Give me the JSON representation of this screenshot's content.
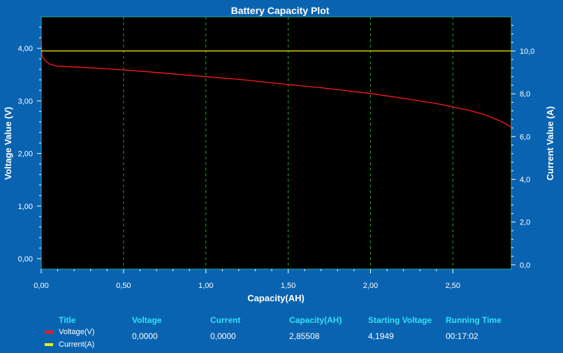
{
  "chart_data": {
    "type": "line",
    "title": "Battery Capacity Plot",
    "xlabel": "Capacity(AH)",
    "ylabel_left": "Voltage Value (V)",
    "ylabel_right": "Current Value (A)",
    "xlim": [
      0,
      2.855
    ],
    "ylim_left": [
      -0.2,
      4.6
    ],
    "ylim_right": [
      -0.2,
      11.6
    ],
    "x_ticks": [
      "0,00",
      "0,50",
      "1,00",
      "1,50",
      "2,00",
      "2,50"
    ],
    "x_tick_values": [
      0,
      0.5,
      1.0,
      1.5,
      2.0,
      2.5
    ],
    "y_left_ticks": [
      "0,00",
      "1,00",
      "2,00",
      "3,00",
      "4,00"
    ],
    "y_left_tick_values": [
      0,
      1,
      2,
      3,
      4
    ],
    "y_right_ticks": [
      "0,0",
      "2,0",
      "4,0",
      "6,0",
      "8,0",
      "10,0"
    ],
    "y_right_tick_values": [
      0,
      2,
      4,
      6,
      8,
      10
    ],
    "grid": "vertical dashed at x ticks",
    "series": [
      {
        "name": "Voltage(V)",
        "axis": "left",
        "color": "#ff1a1a",
        "x": [
          0.0,
          0.005,
          0.02,
          0.05,
          0.1,
          0.2,
          0.3,
          0.5,
          0.7,
          1.0,
          1.2,
          1.5,
          1.7,
          2.0,
          2.2,
          2.4,
          2.6,
          2.7,
          2.8,
          2.855
        ],
        "y": [
          4.19,
          3.85,
          3.78,
          3.7,
          3.66,
          3.645,
          3.63,
          3.59,
          3.54,
          3.46,
          3.41,
          3.31,
          3.25,
          3.14,
          3.05,
          2.95,
          2.82,
          2.73,
          2.6,
          2.5
        ]
      },
      {
        "name": "Current(A)",
        "axis": "right",
        "color": "#f2f200",
        "x": [
          0.0,
          2.855
        ],
        "y": [
          10.0,
          10.0
        ]
      }
    ]
  },
  "info": {
    "headers": {
      "title": "Title",
      "voltage": "Voltage",
      "current": "Current",
      "capacity": "Capacity(AH)",
      "starting_voltage": "Starting Voltage",
      "running_time": "Running Time"
    },
    "values": {
      "voltage": "0,0000",
      "current": "0,0000",
      "capacity": "2,85508",
      "starting_voltage": "4,1949",
      "running_time": "00:17:02"
    },
    "legend": [
      {
        "label": "Voltage(V)",
        "color": "#ff1a1a"
      },
      {
        "label": "Current(A)",
        "color": "#f2f200"
      }
    ]
  }
}
